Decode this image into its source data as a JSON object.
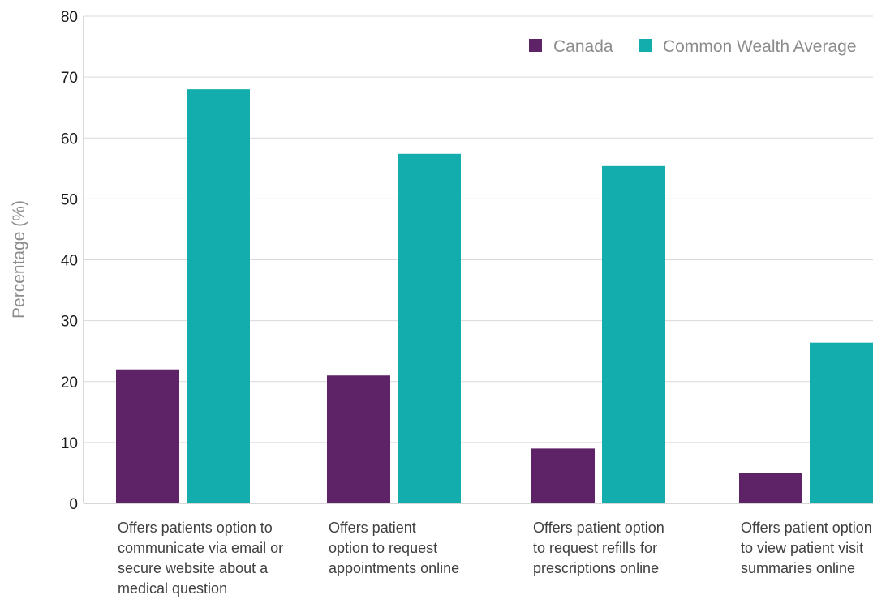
{
  "chart_data": {
    "type": "bar",
    "title": "",
    "xlabel": "",
    "ylabel": "Percentage (%)",
    "ylim": [
      0,
      80
    ],
    "yticks": [
      0,
      10,
      20,
      30,
      40,
      50,
      60,
      70,
      80
    ],
    "grid": true,
    "legend_position": "top-right",
    "categories": [
      [
        "Offers patients option to",
        "communicate via email or",
        "secure website about a",
        "medical question"
      ],
      [
        "Offers patient",
        "option to request",
        "appointments online"
      ],
      [
        "Offers patient option",
        "to request refills for",
        "prescriptions online"
      ],
      [
        "Offers patient option",
        "to view patient visit",
        "summaries online"
      ]
    ],
    "series": [
      {
        "name": "Canada",
        "color": "#5e2267",
        "values": [
          22,
          21,
          9,
          5
        ]
      },
      {
        "name": "Common Wealth Average",
        "color": "#14adad",
        "values": [
          68,
          57.4,
          55.4,
          26.4
        ]
      }
    ],
    "colors": {
      "axis": "#bfbfbf",
      "grid": "#d9d9d9",
      "tick_text": "#1a1a1a",
      "label_text": "#8c8c8c",
      "category_text": "#404040",
      "legend_text": "#8c8c8c"
    }
  }
}
